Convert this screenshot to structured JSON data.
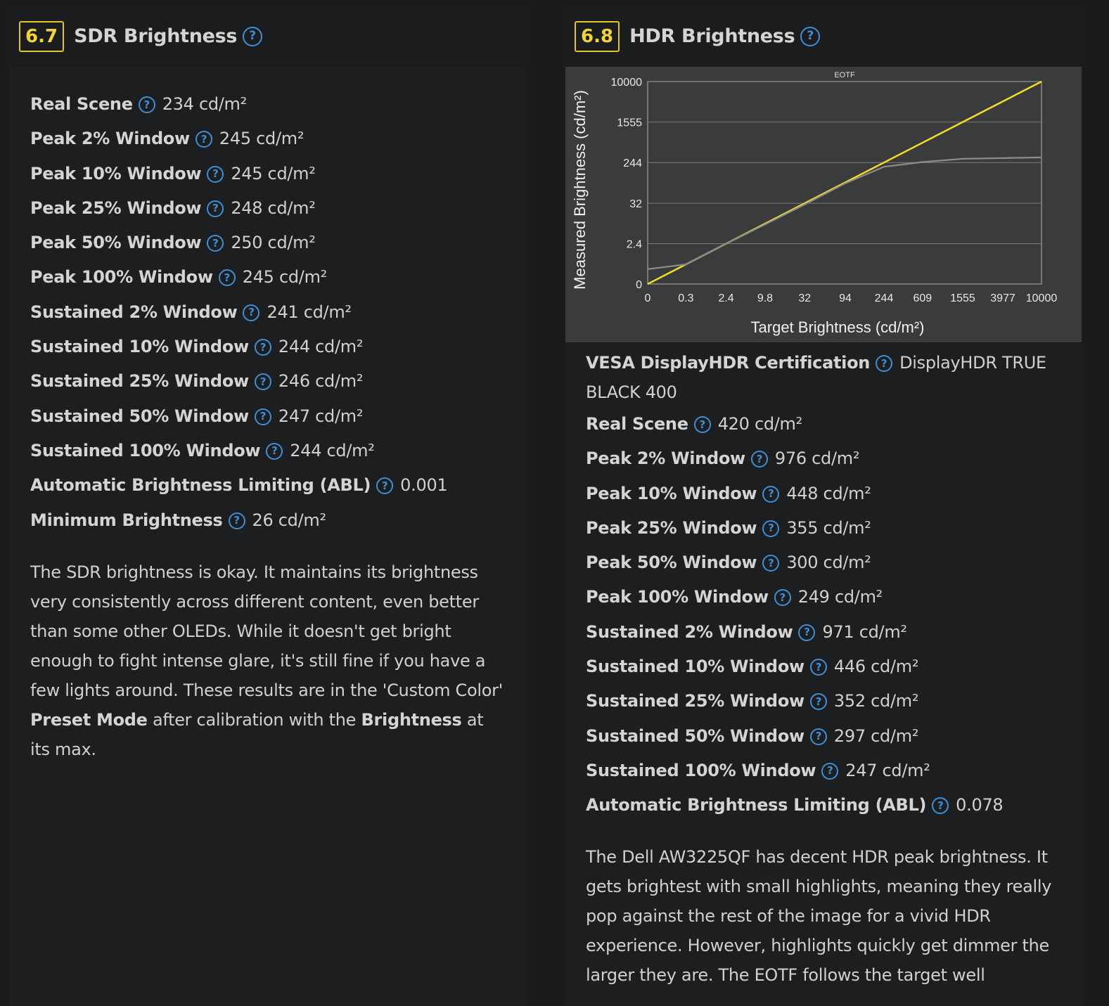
{
  "sdr": {
    "score": "6.7",
    "title": "SDR Brightness",
    "metrics": [
      {
        "label": "Real Scene",
        "value": "234 cd/m²"
      },
      {
        "label": "Peak 2% Window",
        "value": "245 cd/m²"
      },
      {
        "label": "Peak 10% Window",
        "value": "245 cd/m²"
      },
      {
        "label": "Peak 25% Window",
        "value": "248 cd/m²"
      },
      {
        "label": "Peak 50% Window",
        "value": "250 cd/m²"
      },
      {
        "label": "Peak 100% Window",
        "value": "245 cd/m²"
      },
      {
        "label": "Sustained 2% Window",
        "value": "241 cd/m²"
      },
      {
        "label": "Sustained 10% Window",
        "value": "244 cd/m²"
      },
      {
        "label": "Sustained 25% Window",
        "value": "246 cd/m²"
      },
      {
        "label": "Sustained 50% Window",
        "value": "247 cd/m²"
      },
      {
        "label": "Sustained 100% Window",
        "value": "244 cd/m²"
      },
      {
        "label": "Automatic Brightness Limiting (ABL)",
        "value": "0.001"
      },
      {
        "label": "Minimum Brightness",
        "value": "26 cd/m²"
      }
    ],
    "description": {
      "text1": "The SDR brightness is okay. It maintains its brightness very consistently across different content, even better than some other OLEDs. While it doesn't get bright enough to fight intense glare, it's still fine if you have a few lights around. These results are in the 'Custom Color' ",
      "bold1": "Preset Mode",
      "text2": " after calibration with the ",
      "bold2": "Brightness",
      "text3": " at its max."
    }
  },
  "hdr": {
    "score": "6.8",
    "title": "HDR Brightness",
    "certification": {
      "label": "VESA DisplayHDR Certification",
      "value": "DisplayHDR TRUE BLACK 400"
    },
    "metrics": [
      {
        "label": "Real Scene",
        "value": "420 cd/m²"
      },
      {
        "label": "Peak 2% Window",
        "value": "976 cd/m²"
      },
      {
        "label": "Peak 10% Window",
        "value": "448 cd/m²"
      },
      {
        "label": "Peak 25% Window",
        "value": "355 cd/m²"
      },
      {
        "label": "Peak 50% Window",
        "value": "300 cd/m²"
      },
      {
        "label": "Peak 100% Window",
        "value": "249 cd/m²"
      },
      {
        "label": "Sustained 2% Window",
        "value": "971 cd/m²"
      },
      {
        "label": "Sustained 10% Window",
        "value": "446 cd/m²"
      },
      {
        "label": "Sustained 25% Window",
        "value": "352 cd/m²"
      },
      {
        "label": "Sustained 50% Window",
        "value": "297 cd/m²"
      },
      {
        "label": "Sustained 100% Window",
        "value": "247 cd/m²"
      },
      {
        "label": "Automatic Brightness Limiting (ABL)",
        "value": "0.078"
      }
    ],
    "description": "The Dell AW3225QF has decent HDR peak brightness. It gets brightest with small highlights, meaning they really pop against the rest of the image for a vivid HDR experience. However, highlights quickly get dimmer the larger they are. The EOTF follows the target well"
  },
  "colors": {
    "accent_score": "#e3c52a",
    "help_icon": "#3f8fd8",
    "target_line": "#f0dc2a",
    "measured_line": "#8c8c8c"
  },
  "icons": {
    "help": "question-circle-icon"
  },
  "help_glyph": "?",
  "chart_data": {
    "type": "line",
    "title": "EOTF",
    "xlabel": "Target Brightness (cd/m²)",
    "ylabel": "Measured Brightness (cd/m²)",
    "x_ticks": [
      "0",
      "0.3",
      "2.4",
      "9.8",
      "32",
      "94",
      "244",
      "609",
      "1555",
      "3977",
      "10000"
    ],
    "y_ticks": [
      "0",
      "2.4",
      "32",
      "244",
      "1555",
      "10000"
    ],
    "x_scale": "PQ (perceptual)",
    "y_scale": "PQ (perceptual)",
    "grid": "horizontal",
    "series": [
      {
        "role": "target",
        "color": "#f0dc2a",
        "x": [
          0,
          10000
        ],
        "y": [
          0,
          10000
        ]
      },
      {
        "role": "measured",
        "color": "#8c8c8c",
        "x": [
          0,
          0.3,
          2.4,
          9.8,
          32,
          94,
          244,
          609,
          1555,
          3977,
          10000
        ],
        "y": [
          0.15,
          0.3,
          2.4,
          9.3,
          30,
          90,
          200,
          250,
          290,
          300,
          310
        ]
      }
    ]
  }
}
